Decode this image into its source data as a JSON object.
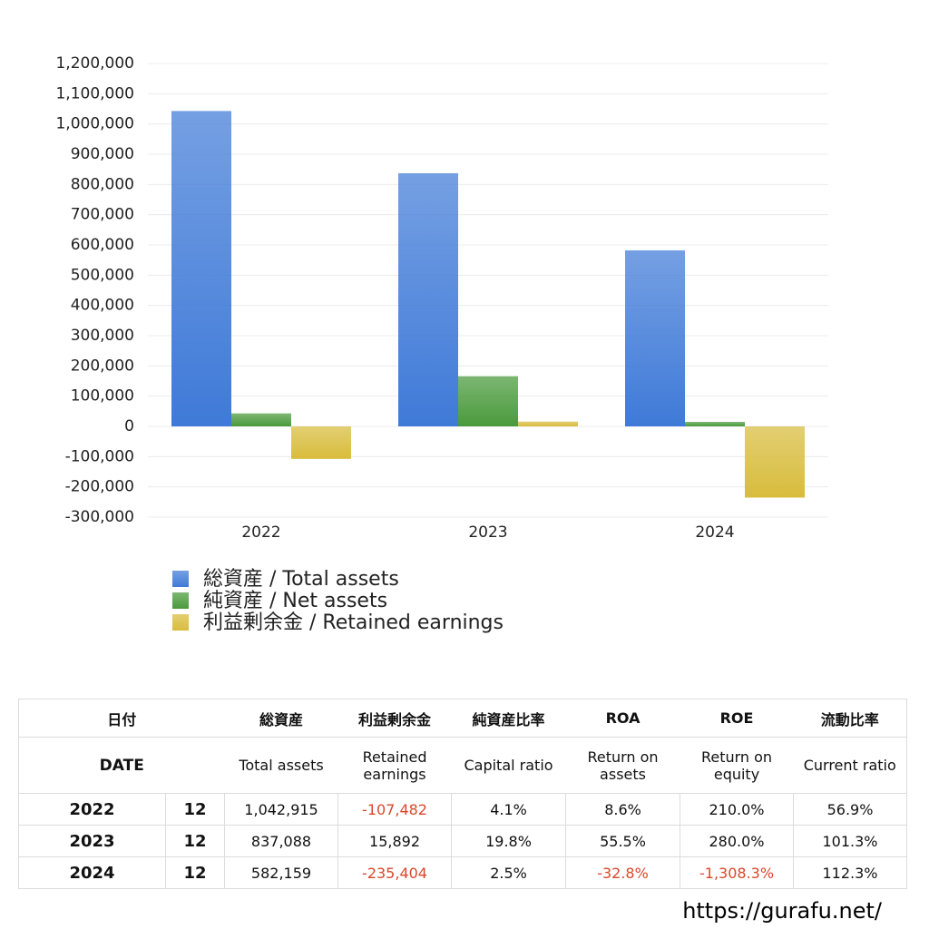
{
  "chart_data": {
    "type": "bar",
    "categories": [
      "2022",
      "2023",
      "2024"
    ],
    "series": [
      {
        "name": "総資産 / Total assets",
        "color": "#3f7ad8",
        "values": [
          1042915,
          837088,
          582159
        ]
      },
      {
        "name": "純資産 / Net assets",
        "color": "#4a9a3c",
        "values": [
          43000,
          166000,
          15000
        ]
      },
      {
        "name": "利益剰余金 / Retained earnings",
        "color": "#d8bc3c",
        "values": [
          -107482,
          15892,
          -235404
        ]
      }
    ],
    "ylim": [
      -300000,
      1200000
    ],
    "yticks": [
      {
        "value": -300000,
        "label": "-300,000"
      },
      {
        "value": -200000,
        "label": "-200,000"
      },
      {
        "value": -100000,
        "label": "-100,000"
      },
      0,
      {
        "value": 100000,
        "label": "100,000"
      },
      {
        "value": 200000,
        "label": "200,000"
      },
      {
        "value": 300000,
        "label": "300,000"
      },
      {
        "value": 400000,
        "label": "400,000"
      },
      {
        "value": 500000,
        "label": "500,000"
      },
      {
        "value": 600000,
        "label": "600,000"
      },
      {
        "value": 700000,
        "label": "700,000"
      },
      {
        "value": 800000,
        "label": "800,000"
      },
      {
        "value": 900000,
        "label": "900,000"
      },
      {
        "value": 1000000,
        "label": "1,000,000"
      },
      {
        "value": 1100000,
        "label": "1,100,000"
      },
      {
        "value": 1200000,
        "label": "1,200,000"
      }
    ],
    "grid": true
  },
  "table": {
    "header_ja": [
      "日付",
      "総資産",
      "利益剰余金",
      "純資産比率",
      "ROA",
      "ROE",
      "流動比率"
    ],
    "header_en": [
      "DATE",
      "Total assets",
      "Retained earnings",
      "Capital ratio",
      "Return on assets",
      "Return on equity",
      "Current ratio"
    ],
    "rows": [
      [
        "2022",
        "12",
        "1,042,915",
        "-107,482",
        "4.1%",
        "8.6%",
        "210.0%",
        "56.9%"
      ],
      [
        "2023",
        "12",
        "837,088",
        "15,892",
        "19.8%",
        "55.5%",
        "280.0%",
        "101.3%"
      ],
      [
        "2024",
        "12",
        "582,159",
        "-235,404",
        "2.5%",
        "-32.8%",
        "-1,308.3%",
        "112.3%"
      ]
    ]
  },
  "footer": "https://gurafu.net/"
}
